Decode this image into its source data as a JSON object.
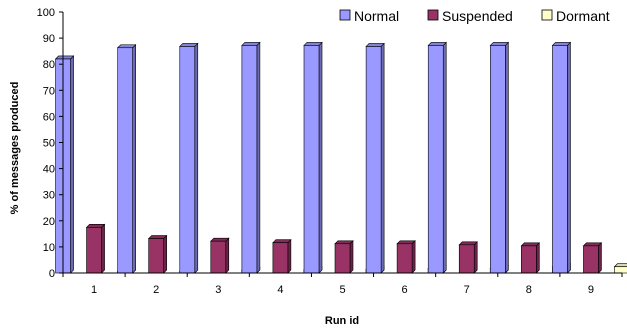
{
  "chart_data": {
    "type": "bar",
    "title": "",
    "xlabel": "Run id",
    "ylabel": "% of messages produced",
    "categories": [
      "1",
      "2",
      "3",
      "4",
      "5",
      "6",
      "7",
      "8",
      "9"
    ],
    "ylim": [
      0,
      100
    ],
    "yticks": [
      "0",
      "10",
      "20",
      "30",
      "40",
      "50",
      "60",
      "70",
      "80",
      "90",
      "100"
    ],
    "grid": false,
    "legend_position": "top-right",
    "series": [
      {
        "name": "Normal",
        "color": "#9999ff",
        "values": [
          82,
          86.3,
          86.8,
          87.2,
          87.2,
          86.8,
          87.2,
          87.2,
          87.2
        ]
      },
      {
        "name": "Suspended",
        "color": "#993366",
        "values": [
          17.5,
          13.2,
          12.2,
          11.6,
          11.2,
          11.2,
          10.8,
          10.4,
          10.4
        ]
      },
      {
        "name": "Dormant",
        "color": "#ffffcc",
        "values": [
          0.5,
          0.5,
          1.0,
          1.2,
          1.4,
          1.8,
          1.8,
          2.4,
          2.4
        ]
      }
    ]
  }
}
